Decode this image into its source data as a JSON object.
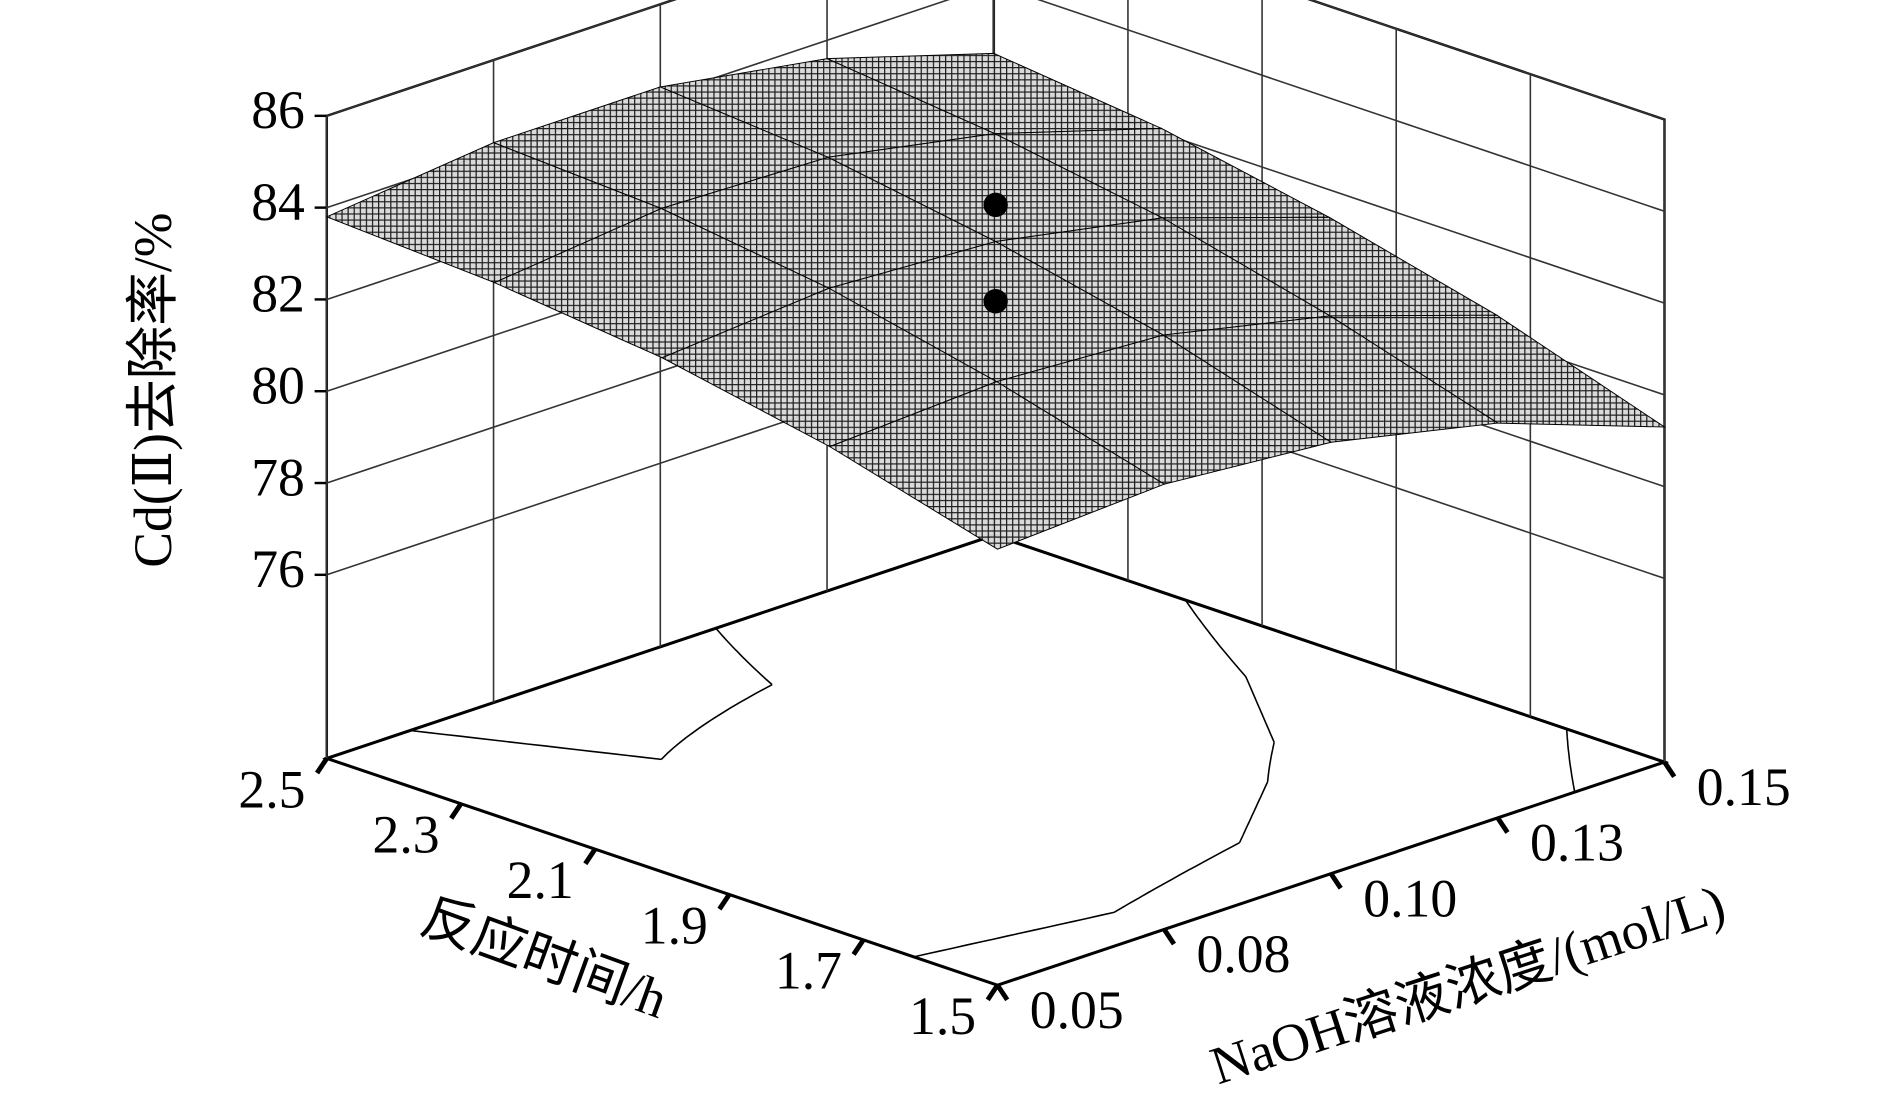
{
  "chart_data": {
    "type": "surface",
    "z_label": "Cd(Ⅱ)去除率/%",
    "x_label": "NaOH溶液浓度/(mol/L)",
    "y_label": "反应时间/h",
    "xlim": [
      0.05,
      0.15
    ],
    "xticks": [
      0.05,
      {
        "value": 0.075,
        "label": "0.08"
      },
      {
        "value": 0.1,
        "label": "0.10"
      },
      {
        "value": 0.125,
        "label": "0.13"
      },
      0.15
    ],
    "ylim": [
      1.5,
      2.5
    ],
    "yticks": [
      1.5,
      1.7,
      1.9,
      2.1,
      2.3,
      2.5
    ],
    "zlim": [
      72,
      86
    ],
    "zticks": [
      76,
      78,
      80,
      82,
      84,
      86
    ],
    "grid": true,
    "grid_x": [
      0.05,
      0.075,
      0.1,
      0.125,
      0.15
    ],
    "grid_y": [
      1.5,
      1.75,
      2.0,
      2.25,
      2.5
    ],
    "grid_z": [
      [
        81.5,
        81.7,
        81.4,
        80.6,
        79.3
      ],
      [
        82.5,
        82.7,
        82.5,
        81.7,
        80.5
      ],
      [
        83.2,
        83.5,
        83.3,
        82.6,
        81.4
      ],
      [
        83.6,
        84.0,
        83.9,
        83.2,
        82.1
      ],
      [
        83.8,
        84.2,
        84.2,
        83.6,
        82.5
      ]
    ],
    "points": {
      "x": [
        0.1,
        0.1
      ],
      "y": [
        2.0,
        2.0
      ],
      "z": [
        84.1,
        82.0
      ]
    },
    "color": "#000000"
  }
}
